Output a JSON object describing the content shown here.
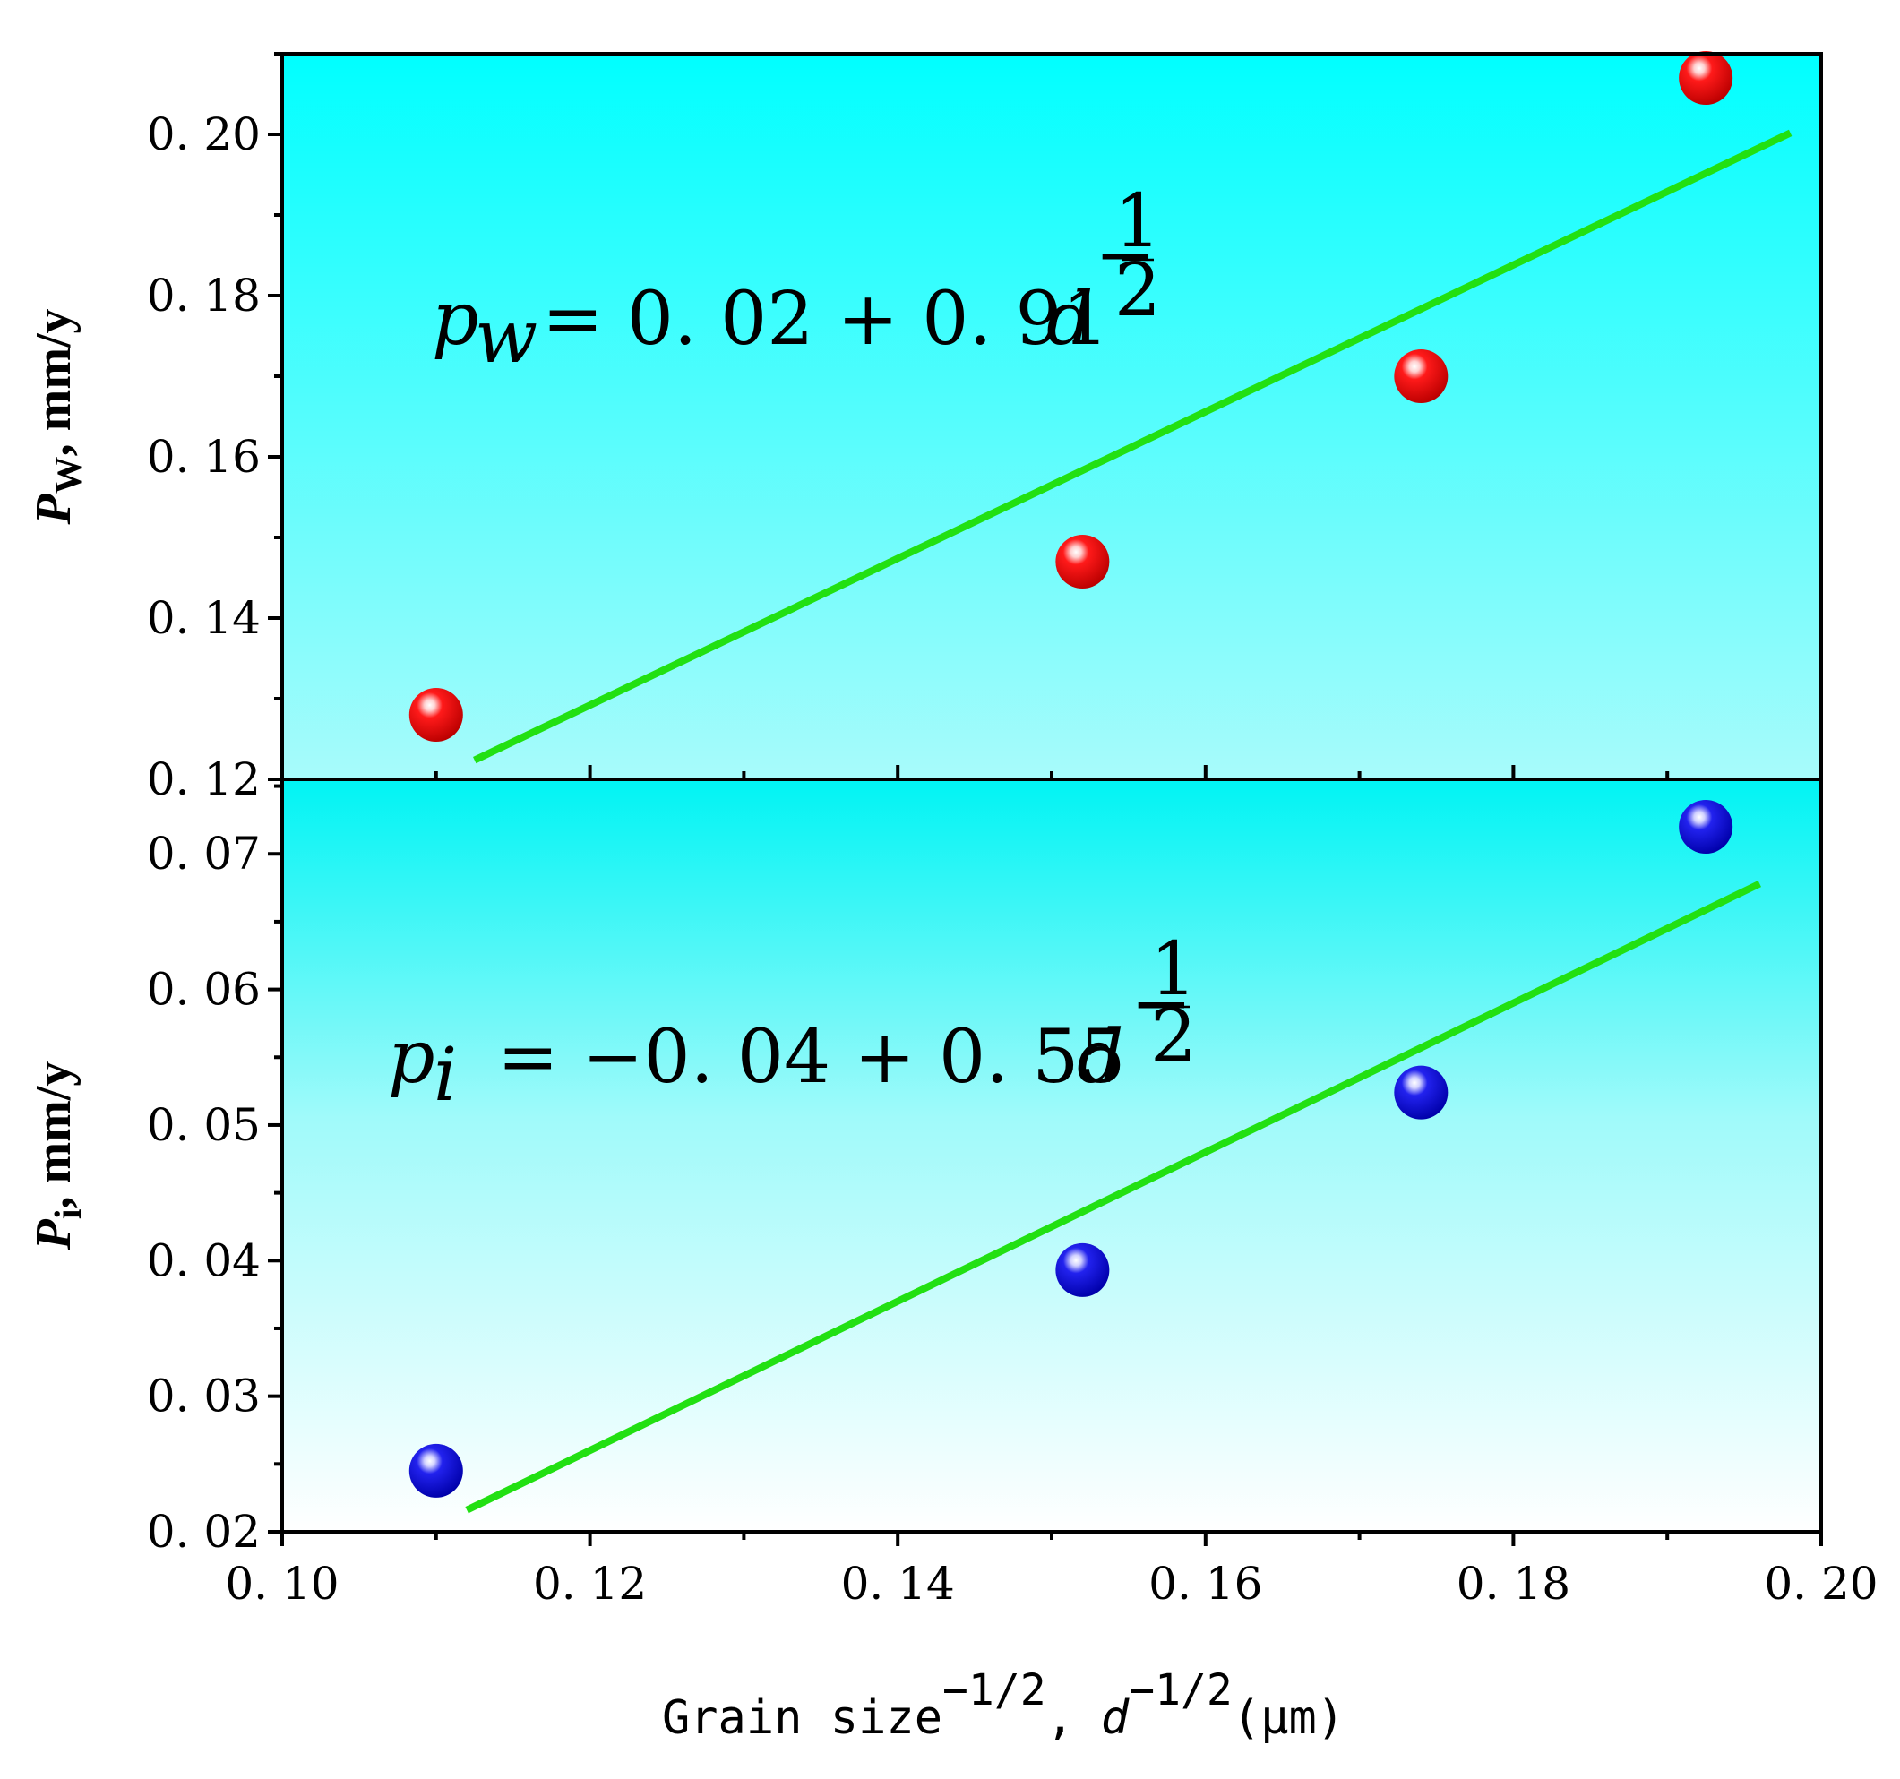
{
  "colors": {
    "background_top": "#00ffff",
    "background_bottom": "#ffffff",
    "fit_line": "#22e012",
    "series_top": "#ff1a1a",
    "series_bottom": "#1a1aee",
    "axes": "#000000"
  },
  "chart_data": [
    {
      "type": "scatter",
      "panel": "top",
      "ylabel": {
        "main": "P",
        "sub": "W",
        "rest": ", mm/y"
      },
      "ylim": [
        0.12,
        0.21
      ],
      "xlim": [
        0.1,
        0.2
      ],
      "yticks": [
        "0. 12",
        "0. 14",
        "0. 16",
        "0. 18",
        "0. 20"
      ],
      "ytick_values": [
        0.12,
        0.14,
        0.16,
        0.18,
        0.2
      ],
      "points": {
        "x": [
          0.11,
          0.152,
          0.174,
          0.1925
        ],
        "y": [
          0.128,
          0.147,
          0.17,
          0.207
        ]
      },
      "fit": {
        "intercept": 0.02,
        "slope": 0.91,
        "x_range": [
          0.1125,
          0.198
        ]
      },
      "equation": {
        "lhs": "p",
        "sub": "w",
        "rhs": "= 0. 02 + 0. 91",
        "var": "d",
        "exp_sign": "−",
        "exp_num": "1",
        "exp_den": "2"
      }
    },
    {
      "type": "scatter",
      "panel": "bottom",
      "ylabel": {
        "main": "P",
        "sub": "i",
        "rest": ", mm/y"
      },
      "ylim": [
        0.02,
        0.0755
      ],
      "xlim": [
        0.1,
        0.2
      ],
      "yticks": [
        "0. 02",
        "0. 03",
        "0. 04",
        "0. 05",
        "0. 06",
        "0. 07"
      ],
      "ytick_values": [
        0.02,
        0.03,
        0.04,
        0.05,
        0.06,
        0.07
      ],
      "points": {
        "x": [
          0.11,
          0.152,
          0.174,
          0.1925
        ],
        "y": [
          0.0245,
          0.0393,
          0.0524,
          0.072
        ]
      },
      "fit": {
        "intercept": -0.04,
        "slope": 0.55,
        "x_range": [
          0.112,
          0.196
        ]
      },
      "equation": {
        "lhs": "p",
        "sub": "i",
        "rhs": "= −0. 04 + 0. 55",
        "var": "d",
        "exp_sign": "−",
        "exp_num": "1",
        "exp_den": "2"
      }
    }
  ],
  "xaxis": {
    "ticks": [
      "0. 10",
      "0. 12",
      "0. 14",
      "0. 16",
      "0. 18",
      "0. 20"
    ],
    "tick_values": [
      0.1,
      0.12,
      0.14,
      0.16,
      0.18,
      0.2
    ],
    "label_main": "Grain size",
    "label_sup": "−1/2",
    "label_sep": ",",
    "label_var": "d",
    "label_unit": "(μm)"
  }
}
